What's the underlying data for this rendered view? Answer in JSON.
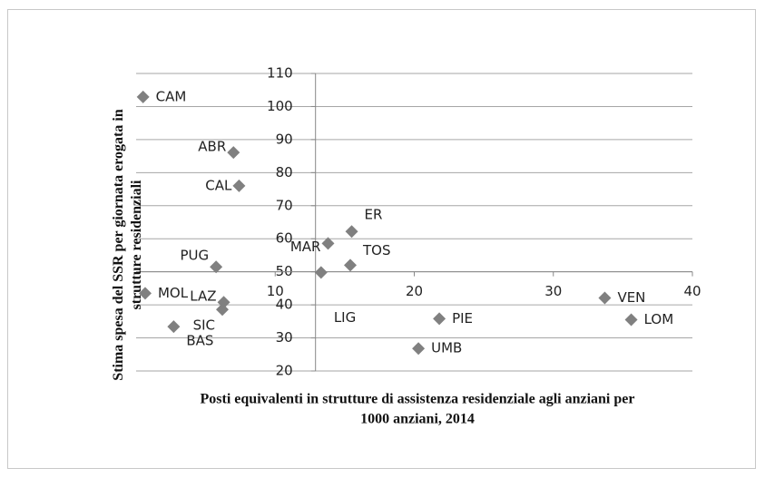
{
  "chart_data": {
    "type": "scatter",
    "y_label_lines": [
      "Stima spesa del SSR per giornata erogata in",
      "strutture residenziali"
    ],
    "x_label_lines": [
      "Posti equivalenti in strutture di assistenza residenziale agli anziani per",
      "1000 anziani, 2014"
    ],
    "series": [
      {
        "color": "#808080",
        "labels": [
          "CAM",
          "ABR",
          "CAL",
          "PUG",
          "MOL",
          "LAZ",
          "SIC",
          "BAS",
          "MAR",
          "ER",
          "TOS",
          "LIG",
          "PIE",
          "UMB",
          "VEN",
          "LOM"
        ],
        "x": [
          0.5,
          7.0,
          7.4,
          5.75,
          0.65,
          6.3,
          6.2,
          2.7,
          13.8,
          15.5,
          15.4,
          13.3,
          21.8,
          20.3,
          33.7,
          35.6
        ],
        "values": [
          102.9,
          86.1,
          76,
          51.5,
          43.5,
          40.8,
          38.6,
          33.4,
          58.6,
          62.2,
          52,
          49.8,
          35.8,
          26.8,
          42.1,
          35.5
        ]
      }
    ],
    "xlim": [
      0,
      40
    ],
    "xticks": [
      10,
      20,
      30,
      40
    ],
    "ylim": [
      20,
      110
    ],
    "yticks": [
      20,
      30,
      40,
      50,
      60,
      70,
      80,
      90,
      100,
      110
    ],
    "x_axis_crosses_y": 50,
    "y_axis_crosses_x": 12.9,
    "grid": true
  }
}
